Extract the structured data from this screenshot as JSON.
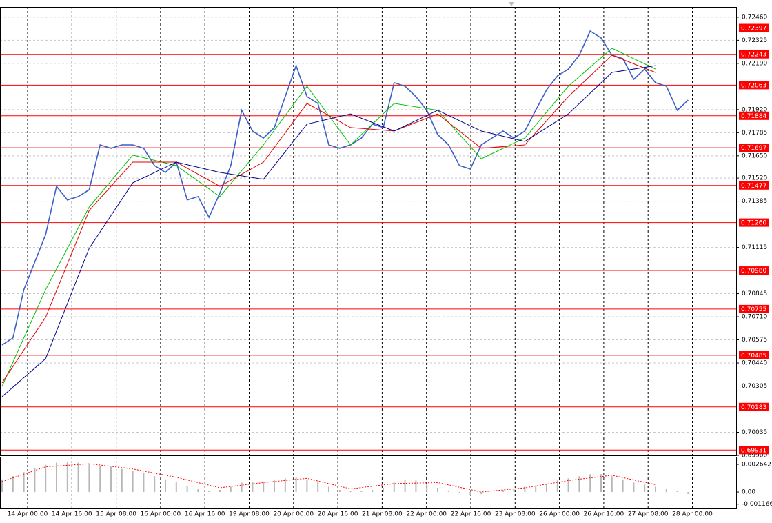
{
  "chart_data": [
    {
      "type": "line",
      "ylim": [
        0.699,
        0.7252
      ],
      "yticks": [
        {
          "value": 0.7246,
          "label": "0.72460"
        },
        0.72325,
        {
          "value": 0.7219,
          "label": "0.72190"
        },
        {
          "value": 0.7192,
          "label": "0.71920"
        },
        0.71785,
        {
          "value": 0.7165,
          "label": "0.71650"
        },
        {
          "value": 0.7152,
          "label": "0.71520"
        },
        0.71385,
        0.71115,
        0.70845,
        {
          "value": 0.7071,
          "label": "0.70710"
        },
        0.70575,
        {
          "value": 0.7044,
          "label": "0.70440"
        },
        0.70305,
        0.70035,
        {
          "value": 0.699,
          "label": "0.69900"
        }
      ],
      "xticks": [
        "14 Apr 00:00",
        "14 Apr 16:00",
        "15 Apr 08:00",
        "16 Apr 00:00",
        "16 Apr 16:00",
        "19 Apr 08:00",
        "20 Apr 00:00",
        "20 Apr 16:00",
        "21 Apr 08:00",
        "22 Apr 00:00",
        "22 Apr 16:00",
        "23 Apr 08:00",
        "26 Apr 00:00",
        "26 Apr 16:00",
        "27 Apr 08:00",
        "28 Apr 00:00"
      ],
      "grid": true,
      "levels": [
        0.72397,
        0.72243,
        0.72063,
        0.71884,
        0.71697,
        0.71477,
        {
          "value": 0.7126,
          "label": "0.71260"
        },
        {
          "value": 0.7098,
          "label": "0.70980"
        },
        0.70755,
        0.70485,
        0.70183,
        0.69931
      ],
      "level_color": "#ff0000",
      "series": [
        {
          "color": "#3a5fc8",
          "values": [
            0.70545,
            0.70586,
            0.70868,
            0.71029,
            0.7119,
            0.71472,
            0.71392,
            0.71412,
            0.71452,
            0.71714,
            0.71694,
            0.71714,
            0.71714,
            0.71694,
            0.71593,
            0.71553,
            0.71613,
            0.71392,
            0.71412,
            0.71291,
            0.71432,
            0.71593,
            0.71916,
            0.71795,
            0.71754,
            0.71815,
            0.71996,
            0.72177,
            0.71996,
            0.71956,
            0.71714,
            0.71694,
            0.71714,
            0.71754,
            0.71835,
            0.71815,
            0.72077,
            0.72057,
            0.71996,
            0.71916,
            0.71774,
            0.71714,
            0.71593,
            0.71573,
            0.71714,
            0.71754,
            0.71795,
            0.71754,
            0.71795,
            0.71916,
            0.72036,
            0.72117,
            0.72157,
            0.72238,
            0.72379,
            0.72339,
            0.72238,
            0.72218,
            0.72097,
            0.72157,
            0.72077,
            0.72057,
            0.71916,
            0.71976
          ]
        },
        {
          "color": "#00c000",
          "values": [
            0.70304,
            0.70868,
            0.71351,
            0.71654,
            0.71593,
            0.71412,
            0.71714,
            0.72057,
            0.71714,
            0.71956,
            0.71916,
            0.71633,
            0.71754,
            0.72057,
            0.72278,
            0.72157
          ]
        },
        {
          "color": "#e00000",
          "values": [
            0.70324,
            0.70707,
            0.71331,
            0.71613,
            0.71613,
            0.71472,
            0.71613,
            0.71956,
            0.71815,
            0.71795,
            0.71895,
            0.71694,
            0.71714,
            0.71996,
            0.72238,
            0.72137
          ]
        },
        {
          "color": "#00008b",
          "values": [
            0.70243,
            0.70465,
            0.7111,
            0.71492,
            0.71613,
            0.71553,
            0.71513,
            0.71835,
            0.71895,
            0.71795,
            0.71916,
            0.71795,
            0.71734,
            0.71895,
            0.72137,
            0.72177
          ]
        }
      ]
    },
    {
      "type": "bar",
      "ylim": [
        -0.00158,
        0.0033
      ],
      "yticks": [
        0.002642,
        {
          "value": 0,
          "label": "0.00"
        },
        -0.001166
      ],
      "series": [
        {
          "color": "#b8b8b8",
          "values": [
            0.0012,
            0.0015,
            0.0019,
            0.0023,
            0.0026,
            0.0028,
            0.0029,
            0.0028,
            0.0027,
            0.0025,
            0.0024,
            0.0022,
            0.002,
            0.0018,
            0.0015,
            0.0012,
            0.001,
            0.0006,
            0.0003,
            0.0001,
            0.0002,
            0.0005,
            0.0009,
            0.001,
            0.001,
            0.0011,
            0.0013,
            0.0014,
            0.0012,
            0.0009,
            0.0005,
            0.0002,
            0.0001,
            0.0001,
            0.0002,
            0.0004,
            0.0009,
            0.0012,
            0.0011,
            0.0008,
            0.0004,
            0.0001,
            -0.0001,
            -0.0003,
            -0.0002,
            0,
            0.0002,
            0.0003,
            0.0005,
            0.0006,
            0.0008,
            0.0011,
            0.0013,
            0.0015,
            0.0017,
            0.0017,
            0.0015,
            0.0012,
            0.0009,
            0.0007,
            0.0005,
            0.0003,
            0.0001,
            -0.0002
          ]
        },
        {
          "color": "#ff0000",
          "values": [
            0.001,
            0.0024,
            0.0027,
            0.0022,
            0.0014,
            0.0004,
            0.0009,
            0.0013,
            0.0003,
            0.0008,
            0.0009,
            0,
            0.0004,
            0.0011,
            0.0016,
            0.0007
          ]
        }
      ]
    }
  ]
}
